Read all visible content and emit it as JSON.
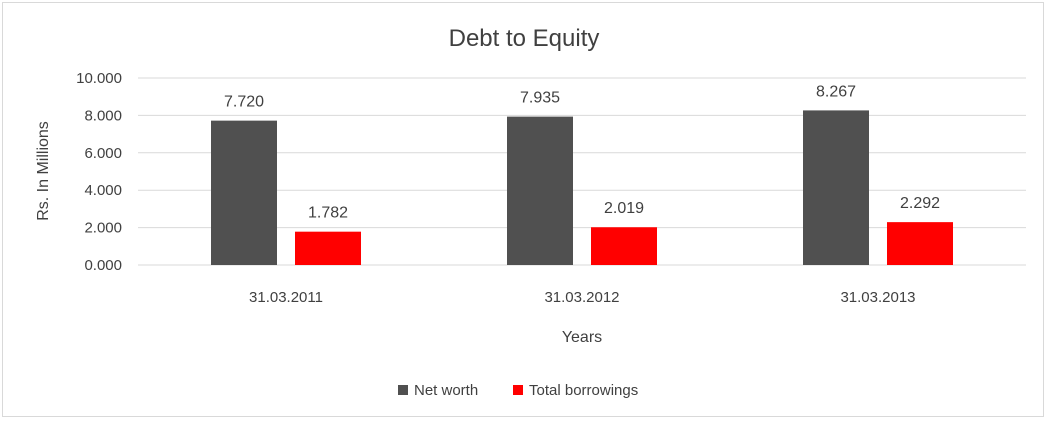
{
  "chart_data": {
    "type": "bar",
    "title": "Debt to Equity",
    "xlabel": "Years",
    "ylabel": "Rs. In Millions",
    "categories": [
      "31.03.2011",
      "31.03.2012",
      "31.03.2013"
    ],
    "series": [
      {
        "name": "Net worth",
        "values": [
          7.72,
          7.935,
          8.267
        ],
        "labels": [
          "7.720",
          "7.935",
          "8.267"
        ],
        "color": "#505050"
      },
      {
        "name": "Total borrowings",
        "values": [
          1.782,
          2.019,
          2.292
        ],
        "labels": [
          "1.782",
          "2.019",
          "2.292"
        ],
        "color": "#ff0000"
      }
    ],
    "ylim": [
      0,
      10
    ],
    "yticks": [
      0,
      2,
      4,
      6,
      8,
      10
    ],
    "ytick_labels": [
      "0.000",
      "2.000",
      "4.000",
      "6.000",
      "8.000",
      "10.000"
    ],
    "grid": true,
    "gridline_color": "#d9d9d9",
    "legend_position": "bottom"
  }
}
